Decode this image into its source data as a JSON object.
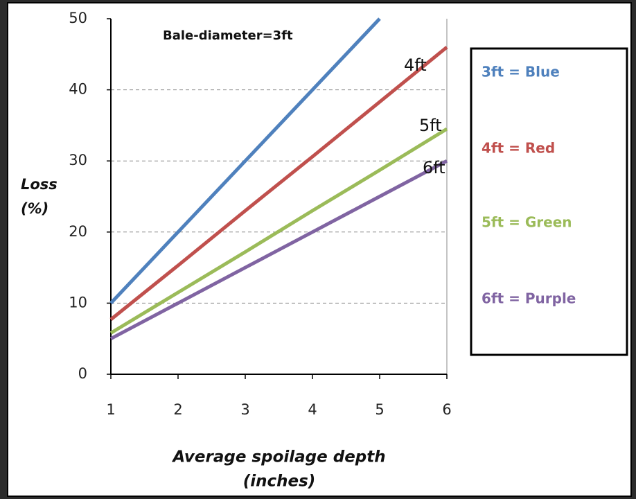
{
  "chart_data": {
    "type": "line",
    "annotations": [
      "Bale-diameter=3ft",
      "4ft",
      "5ft",
      "6ft"
    ],
    "x_label": [
      "Average spoilage depth",
      "(inches)"
    ],
    "y_label": [
      "Loss",
      "(%)"
    ],
    "x": [
      1,
      2,
      3,
      4,
      5,
      6
    ],
    "series": [
      {
        "name": "3ft = Blue",
        "color": "#4f81bd",
        "values": [
          10,
          20,
          30,
          40,
          50,
          null
        ]
      },
      {
        "name": "4ft = Red",
        "color": "#c0504d",
        "values": [
          7.7,
          15.3,
          23,
          30.6,
          38.3,
          46
        ]
      },
      {
        "name": "5ft = Green",
        "color": "#9bbb59",
        "values": [
          5.8,
          11.5,
          17.2,
          23,
          28.7,
          34.5
        ]
      },
      {
        "name": "6ft = Purple",
        "color": "#8064a2",
        "values": [
          5,
          10,
          15,
          20,
          25,
          30
        ]
      }
    ],
    "xlim": [
      1,
      6
    ],
    "xticks": [
      1,
      2,
      3,
      4,
      5,
      6
    ],
    "ylim": [
      0,
      50
    ],
    "yticks": [
      0,
      10,
      20,
      30,
      40,
      50
    ],
    "grid": true,
    "legend": "right"
  }
}
